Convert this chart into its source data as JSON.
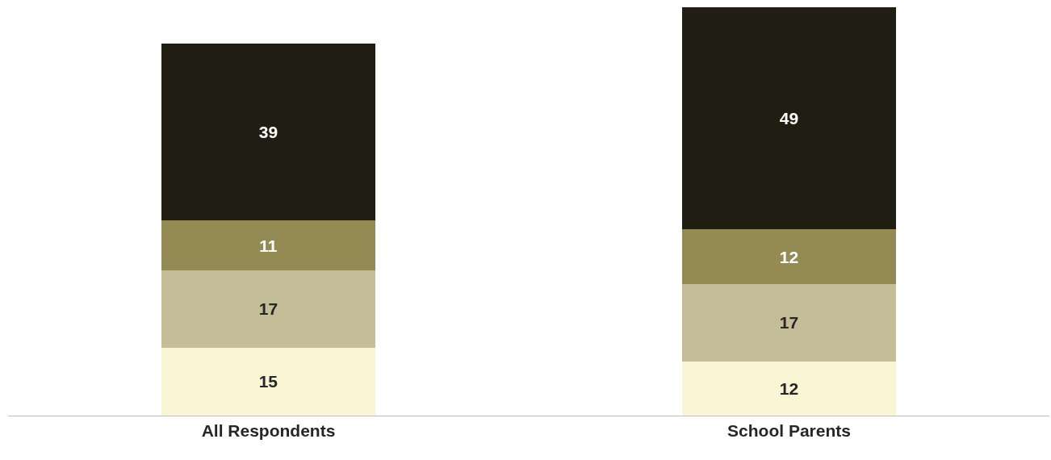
{
  "chart_data": {
    "type": "bar",
    "stacked": true,
    "data_labels": true,
    "tick_labels": "x",
    "categories": [
      "All Respondents",
      "School Parents"
    ],
    "ylim": [
      0,
      90
    ],
    "series": [
      {
        "color": "#faf6d5",
        "values": [
          15,
          12
        ]
      },
      {
        "color": "#c5bd98",
        "values": [
          17,
          17
        ]
      },
      {
        "color": "#948a54",
        "values": [
          11,
          12
        ]
      },
      {
        "color": "#201e12",
        "values": [
          39,
          49
        ]
      }
    ]
  }
}
